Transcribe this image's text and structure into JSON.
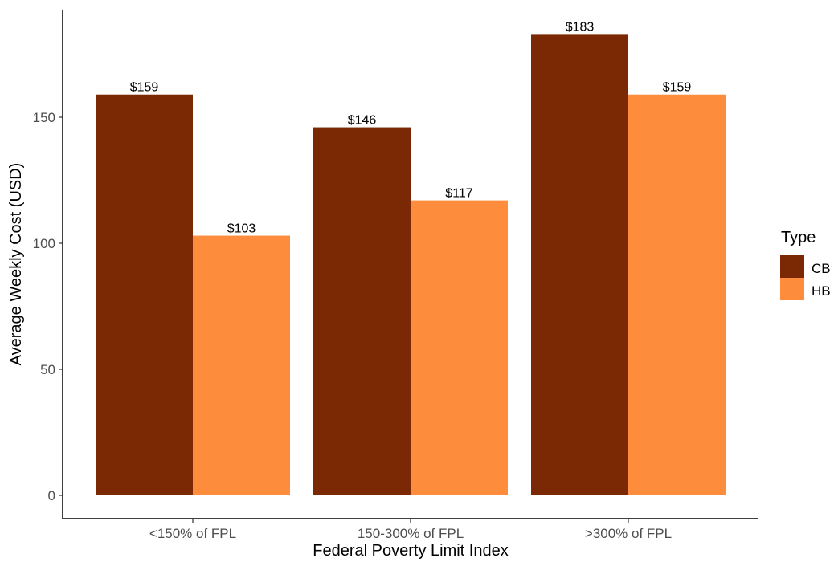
{
  "chart_data": {
    "type": "bar",
    "title": "",
    "xlabel": "Federal Poverty Limit Index",
    "ylabel": "Average Weekly Cost (USD)",
    "categories": [
      "<150% of FPL",
      "150-300% of FPL",
      ">300% of FPL"
    ],
    "series": [
      {
        "name": "CB",
        "color": "#7b2905",
        "values": [
          159,
          146,
          183
        ],
        "labels": [
          "$159",
          "$146",
          "$183"
        ]
      },
      {
        "name": "HB",
        "color": "#fd8d3c",
        "values": [
          103,
          117,
          159
        ],
        "labels": [
          "$103",
          "$117",
          "$159"
        ]
      }
    ],
    "ylim": [
      0,
      190
    ],
    "yticks": [
      0,
      50,
      100,
      150
    ],
    "grid": false,
    "legend": {
      "title": "Type",
      "position": "right"
    }
  }
}
